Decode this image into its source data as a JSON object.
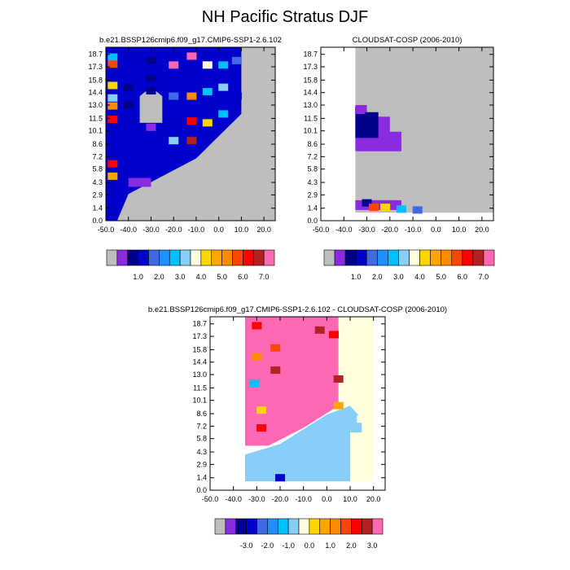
{
  "figure": {
    "title": "NH Pacific Stratus DJF"
  },
  "colors": {
    "cloud_levels": [
      "#bebebe",
      "#8a2be2",
      "#00008b",
      "#0000cd",
      "#4169e1",
      "#1e90ff",
      "#00bfff",
      "#87cefa",
      "#ffffe0",
      "#ffd700",
      "#ffa500",
      "#ff8c00",
      "#ff4500",
      "#ff0000",
      "#b22222",
      "#ff69b4"
    ],
    "diff_levels": [
      "#bebebe",
      "#8a2be2",
      "#00008b",
      "#0000cd",
      "#4169e1",
      "#1e90ff",
      "#00bfff",
      "#87cefa",
      "#ffffe0",
      "#ffd700",
      "#ffa500",
      "#ff8c00",
      "#ff4500",
      "#ff0000",
      "#b22222",
      "#ff69b4"
    ],
    "missing": "#bebebe"
  },
  "chart_data": [
    {
      "type": "heatmap",
      "title": "b.e21.BSSP126cmip6.f09_g17.CMIP6-SSP1-2.6.102",
      "xlabel": "",
      "ylabel": "",
      "x_ticks": [
        "-50.0",
        "-40.0",
        "-30.0",
        "-20.0",
        "-10.0",
        "0.0",
        "10.0",
        "20.0"
      ],
      "y_ticks": [
        "0.0",
        "1.4",
        "2.9",
        "4.3",
        "5.8",
        "7.2",
        "8.6",
        "10.1",
        "11.5",
        "13.0",
        "14.4",
        "15.8",
        "17.3",
        "18.7"
      ],
      "xlim": [
        -50,
        25
      ],
      "ylim": [
        0,
        19.5
      ],
      "colorbar_labels": [
        "1.0",
        "2.0",
        "3.0",
        "4.0",
        "5.0",
        "6.0",
        "7.0"
      ],
      "cells": [
        [
          -47,
          18.4,
          "#00bfff"
        ],
        [
          -47,
          17.6,
          "#ff4500"
        ],
        [
          -47,
          15.2,
          "#ffd700"
        ],
        [
          -47,
          13.8,
          "#87cefa"
        ],
        [
          -47,
          12.9,
          "#ff8c00"
        ],
        [
          -47,
          11.4,
          "#ff0000"
        ],
        [
          -47,
          6.4,
          "#ff0000"
        ],
        [
          -47,
          5.0,
          "#ffa500"
        ],
        [
          -40,
          17.0,
          "#0000cd"
        ],
        [
          -40,
          15.0,
          "#00008b"
        ],
        [
          -40,
          13.0,
          "#00008b"
        ],
        [
          -40,
          10.0,
          "#0000cd"
        ],
        [
          -40,
          7.0,
          "#0000cd"
        ],
        [
          -30,
          18.0,
          "#00008b"
        ],
        [
          -30,
          16.0,
          "#00008b"
        ],
        [
          -30,
          14.6,
          "#00008b"
        ],
        [
          -30,
          10.5,
          "#8a2be2"
        ],
        [
          -30,
          8.5,
          "#0000cd"
        ],
        [
          -20,
          17.5,
          "#ff69b4"
        ],
        [
          -20,
          14.0,
          "#4169e1"
        ],
        [
          -20,
          9.0,
          "#87cefa"
        ],
        [
          -12,
          18.5,
          "#ff69b4"
        ],
        [
          -12,
          14.0,
          "#ff8c00"
        ],
        [
          -12,
          11.2,
          "#ff0000"
        ],
        [
          -12,
          9.0,
          "#b22222"
        ],
        [
          -5,
          17.5,
          "#ffffe0"
        ],
        [
          -5,
          14.5,
          "#00bfff"
        ],
        [
          -5,
          11.0,
          "#ffd700"
        ],
        [
          2,
          17.5,
          "#00bfff"
        ],
        [
          2,
          15.0,
          "#87cefa"
        ],
        [
          2,
          12.0,
          "#00bfff"
        ],
        [
          8,
          18.0,
          "#4169e1"
        ],
        [
          8,
          14.0,
          "#0000cd"
        ]
      ]
    },
    {
      "type": "heatmap",
      "title": "CLOUDSAT-COSP (2006-2010)",
      "xlabel": "",
      "ylabel": "",
      "x_ticks": [
        "-50.0",
        "-40.0",
        "-30.0",
        "-20.0",
        "-10.0",
        "0.0",
        "10.0",
        "20.0"
      ],
      "y_ticks": [
        "0.0",
        "1.4",
        "2.9",
        "4.3",
        "5.8",
        "7.2",
        "8.6",
        "10.1",
        "11.5",
        "13.0",
        "14.4",
        "15.8",
        "17.3",
        "18.7"
      ],
      "xlim": [
        -50,
        25
      ],
      "ylim": [
        0,
        19.5
      ],
      "colorbar_labels": [
        "1.0",
        "2.0",
        "3.0",
        "4.0",
        "5.0",
        "6.0",
        "7.0"
      ],
      "cells": [
        [
          -33,
          12.4,
          "#8a2be2"
        ],
        [
          -30,
          10.8,
          "#00008b"
        ],
        [
          -25,
          8.6,
          "#8a2be2"
        ],
        [
          -30,
          2.0,
          "#00008b"
        ],
        [
          -27,
          1.5,
          "#ff4500"
        ],
        [
          -22,
          1.5,
          "#ffd700"
        ],
        [
          -15,
          1.3,
          "#00bfff"
        ],
        [
          -8,
          1.2,
          "#4169e1"
        ]
      ]
    },
    {
      "type": "heatmap",
      "title": "b.e21.BSSP126cmip6.f09_g17.CMIP6-SSP1-2.6.102 - CLOUDSAT-COSP (2006-2010)",
      "xlabel": "",
      "ylabel": "",
      "x_ticks": [
        "-50.0",
        "-40.0",
        "-30.0",
        "-20.0",
        "-10.0",
        "0.0",
        "10.0",
        "20.0"
      ],
      "y_ticks": [
        "0.0",
        "1.4",
        "2.9",
        "4.3",
        "5.8",
        "7.2",
        "8.6",
        "10.1",
        "11.5",
        "13.0",
        "14.4",
        "15.8",
        "17.3",
        "18.7"
      ],
      "xlim": [
        -50,
        25
      ],
      "ylim": [
        0,
        19.5
      ],
      "colorbar_labels": [
        "-3.0",
        "-2.0",
        "-1.0",
        "0.0",
        "1.0",
        "2.0",
        "3.0"
      ],
      "cells": [
        [
          -30,
          18.5,
          "#ff0000"
        ],
        [
          -30,
          15.0,
          "#ff8c00"
        ],
        [
          -31,
          12.0,
          "#00bfff"
        ],
        [
          -28,
          9.0,
          "#ffd700"
        ],
        [
          -28,
          7.0,
          "#ff0000"
        ],
        [
          -22,
          16.0,
          "#ff4500"
        ],
        [
          -22,
          13.5,
          "#b22222"
        ],
        [
          -15,
          17.0,
          "#ff69b4"
        ],
        [
          -10,
          10.0,
          "#ff69b4"
        ],
        [
          -3,
          18.0,
          "#b22222"
        ],
        [
          3,
          17.5,
          "#ff0000"
        ],
        [
          5,
          12.5,
          "#b22222"
        ],
        [
          5,
          9.5,
          "#ffa500"
        ],
        [
          0,
          5.0,
          "#87cefa"
        ],
        [
          -10,
          2.4,
          "#87cefa"
        ],
        [
          -20,
          1.4,
          "#0000cd"
        ],
        [
          15,
          8.0,
          "#ffffe0"
        ]
      ]
    }
  ]
}
